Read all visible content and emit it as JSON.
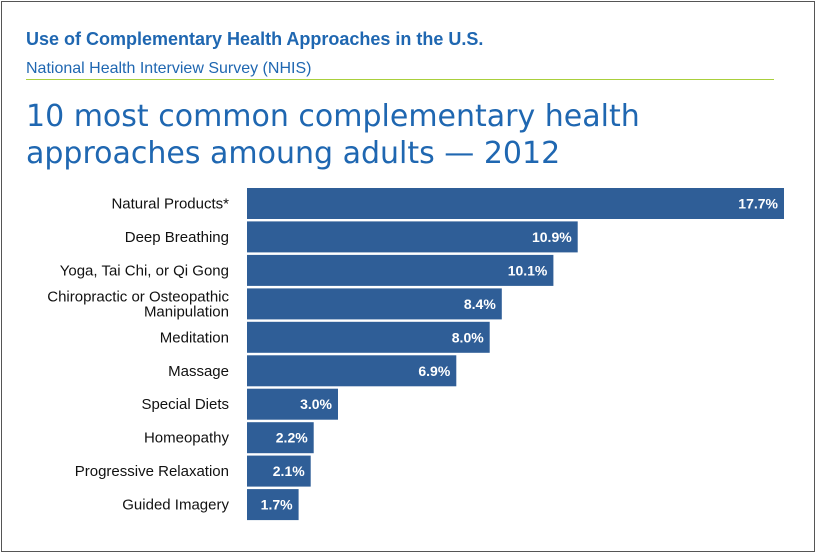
{
  "header": {
    "title": "Use of Complementary Health Approaches in the U.S.",
    "subtitle": "National Health Interview Survey (NHIS)"
  },
  "colors": {
    "bar": "#2f5e97",
    "title_blue": "#1f67b1",
    "rule_green": "#a9cf3c"
  },
  "chart_data": {
    "type": "bar",
    "orientation": "horizontal",
    "title_lines": [
      "10 most common complementary health",
      "approaches amoung adults — 2012"
    ],
    "categories": [
      [
        "Natural Products*"
      ],
      [
        "Deep Breathing"
      ],
      [
        "Yoga, Tai Chi, or Qi Gong"
      ],
      [
        "Chiropractic or Osteopathic",
        "Manipulation"
      ],
      [
        "Meditation"
      ],
      [
        "Massage"
      ],
      [
        "Special Diets"
      ],
      [
        "Homeopathy"
      ],
      [
        "Progressive Relaxation"
      ],
      [
        "Guided Imagery"
      ]
    ],
    "values": [
      17.7,
      10.9,
      10.1,
      8.4,
      8.0,
      6.9,
      3.0,
      2.2,
      2.1,
      1.7
    ],
    "value_labels": [
      "17.7%",
      "10.9%",
      "10.1%",
      "8.4%",
      "8.0%",
      "6.9%",
      "3.0%",
      "2.2%",
      "2.1%",
      "1.7%"
    ],
    "unit": "%",
    "xlim": [
      0,
      17.7
    ],
    "grid": false,
    "legend": "none",
    "data_labels": "inside-end"
  }
}
